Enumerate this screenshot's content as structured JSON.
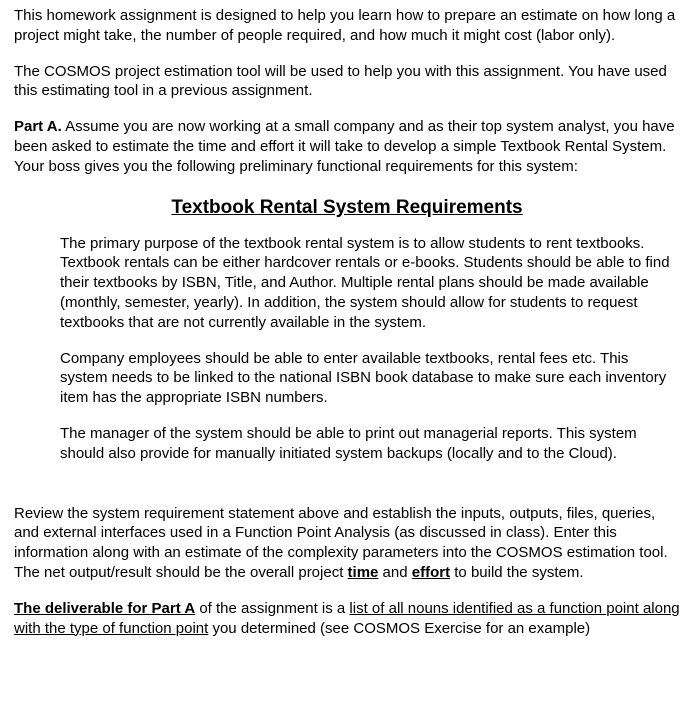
{
  "intro": {
    "p1": "This homework assignment is designed to help you learn how to prepare an estimate on how long a project might take, the number of people required, and how much it might cost (labor only).",
    "p2": "The COSMOS project estimation tool will be used to help you with this assignment.  You have used this estimating tool in a previous assignment."
  },
  "partA": {
    "label": "Part A.",
    "text": "  Assume you are now working at a small company and as their top system analyst, you have been asked to estimate the time and effort it will take to develop a simple Textbook Rental System.  Your boss gives you the following preliminary functional requirements for this system:"
  },
  "req": {
    "title": "Textbook Rental System Requirements",
    "p1": "The primary purpose of the textbook rental system is to allow students to rent textbooks.  Textbook rentals can be either hardcover rentals or e-books.  Students should be able to find their textbooks by ISBN, Title, and Author.  Multiple rental plans should be made available (monthly, semester, yearly).  In addition, the system should allow for students to request textbooks that are not currently available in the system.",
    "p2": "Company employees should be able to enter available textbooks, rental fees etc.  This system needs to be linked to the national ISBN book database to make sure each inventory item has the appropriate ISBN numbers.",
    "p3": "The manager of the system should be able to print out managerial reports.  This system should also provide for manually initiated system backups (locally and to the Cloud)."
  },
  "review": {
    "pre": "Review the system requirement statement above and establish the inputs, outputs, files, queries, and external interfaces used in a Function Point Analysis (as discussed in class).  Enter this information along with an estimate of the complexity parameters into the COSMOS estimation tool.  The net output/result should be the overall project ",
    "w1": "time",
    "mid": " and ",
    "w2": "effort",
    "post": " to build the system."
  },
  "deliv": {
    "lead": "The deliverable for Part A",
    "mid1": " of the assignment is a ",
    "u1": "list of all nouns identified as a function point along with the type of function point",
    "tail": " you determined (see COSMOS Exercise for an example)"
  }
}
